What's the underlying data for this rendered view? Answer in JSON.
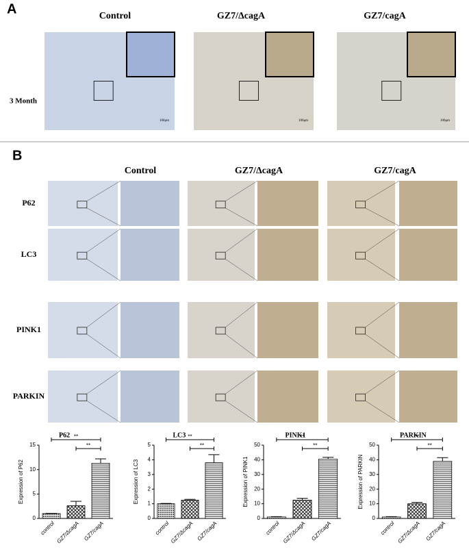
{
  "panel_a": {
    "label": "A",
    "columns": [
      "Control",
      "GZ7/ΔcagA",
      "GZ7/cagA"
    ],
    "row_label": "3 Month",
    "scale_bars": [
      "100μm",
      "100μm",
      "100μm"
    ]
  },
  "panel_b": {
    "label": "B",
    "columns": [
      "Control",
      "GZ7/ΔcagA",
      "GZ7/cagA"
    ],
    "rows": [
      "P62",
      "LC3",
      "PINK1",
      "PARKIN"
    ]
  },
  "chart_data": [
    {
      "type": "bar",
      "title": "P62",
      "y_label": "Expression of P62",
      "categories": [
        "control",
        "GZ7/ΔcagA",
        "GZ7/cagA"
      ],
      "values": [
        1,
        2.6,
        11.3
      ],
      "errors": [
        0.05,
        0.9,
        0.9
      ],
      "fills": [
        "dots",
        "crosshatch",
        "hlines"
      ],
      "ylim": [
        0,
        15
      ],
      "yticks": [
        0,
        5,
        10,
        15
      ],
      "significance": [
        {
          "from": 0,
          "to": 2,
          "label": "**"
        },
        {
          "from": 1,
          "to": 2,
          "label": "**"
        }
      ]
    },
    {
      "type": "bar",
      "title": "LC3",
      "y_label": "Expression of LC3",
      "categories": [
        "control",
        "GZ7/ΔcagA",
        "GZ7/cagA"
      ],
      "values": [
        1,
        1.25,
        3.8
      ],
      "errors": [
        0.02,
        0.05,
        0.55
      ],
      "fills": [
        "dots",
        "crosshatch",
        "hlines"
      ],
      "ylim": [
        0,
        5
      ],
      "yticks": [
        0,
        1,
        2,
        3,
        4,
        5
      ],
      "significance": [
        {
          "from": 0,
          "to": 2,
          "label": "**"
        },
        {
          "from": 1,
          "to": 2,
          "label": "**"
        }
      ]
    },
    {
      "type": "bar",
      "title": "PINK1",
      "y_label": "Expression of PINK1",
      "categories": [
        "control",
        "GZ7/ΔcagA",
        "GZ7/cagA"
      ],
      "values": [
        1,
        12.5,
        40.5
      ],
      "errors": [
        0.2,
        1.2,
        1.2
      ],
      "fills": [
        "dots",
        "crosshatch",
        "hlines"
      ],
      "ylim": [
        0,
        50
      ],
      "yticks": [
        0,
        10,
        20,
        30,
        40,
        50
      ],
      "significance": [
        {
          "from": 0,
          "to": 2,
          "label": "**"
        },
        {
          "from": 1,
          "to": 2,
          "label": "**"
        }
      ]
    },
    {
      "type": "bar",
      "title": "PARKIN",
      "y_label": "Expression of PARKIN",
      "categories": [
        "control",
        "GZ7/ΔcagA",
        "GZ7/cagA"
      ],
      "values": [
        1,
        10,
        39
      ],
      "errors": [
        0.2,
        1,
        2.5
      ],
      "fills": [
        "dots",
        "crosshatch",
        "hlines"
      ],
      "ylim": [
        0,
        50
      ],
      "yticks": [
        0,
        10,
        20,
        30,
        40,
        50
      ],
      "significance": [
        {
          "from": 0,
          "to": 2,
          "label": "**"
        },
        {
          "from": 1,
          "to": 2,
          "label": "**"
        }
      ]
    }
  ]
}
